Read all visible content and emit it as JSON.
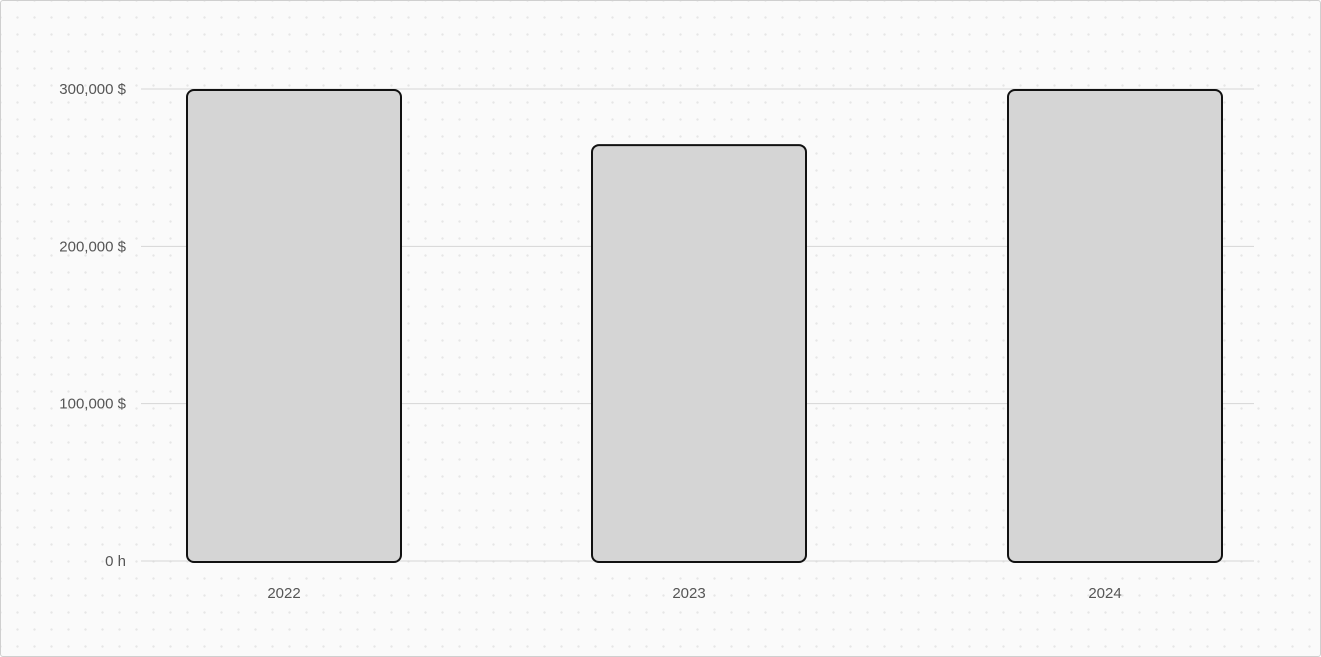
{
  "chart_data": {
    "type": "bar",
    "title": "",
    "xlabel": "",
    "ylabel": "",
    "categories": [
      "2022",
      "2023",
      "2024"
    ],
    "values": [
      300000,
      265000,
      300000
    ],
    "ylim": [
      0,
      300000
    ],
    "y_ticks": [
      {
        "value": 0,
        "label": "0 h"
      },
      {
        "value": 100000,
        "label": "100,000 $"
      },
      {
        "value": 200000,
        "label": "200,000 $"
      },
      {
        "value": 300000,
        "label": "300,000 $"
      }
    ],
    "grid": true,
    "legend": "none",
    "colors": {
      "bar_fill": "#d5d5d5",
      "bar_stroke": "#111111",
      "grid": "#d6d6d6",
      "text": "#555555"
    }
  }
}
